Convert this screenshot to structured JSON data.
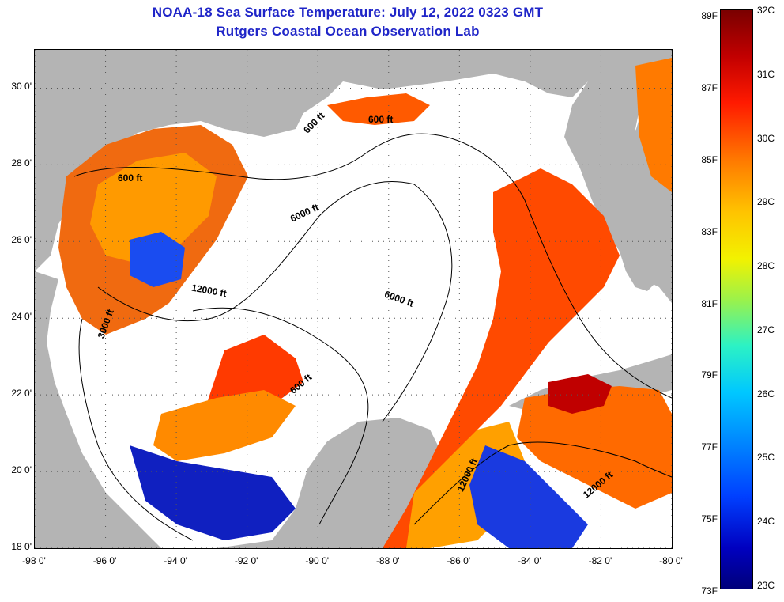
{
  "title": {
    "line1": "NOAA-18 Sea Surface Temperature:  July 12, 2022 0323 GMT",
    "line2": "Rutgers Coastal Ocean Observation Lab"
  },
  "map": {
    "lon_range": [
      -98,
      -80
    ],
    "lat_range": [
      18,
      31
    ],
    "lat_ticks": [
      {
        "value": 30,
        "label": "30 0'"
      },
      {
        "value": 28,
        "label": "28 0'"
      },
      {
        "value": 26,
        "label": "26 0'"
      },
      {
        "value": 24,
        "label": "24 0'"
      },
      {
        "value": 22,
        "label": "22 0'"
      },
      {
        "value": 20,
        "label": "20 0'"
      },
      {
        "value": 18,
        "label": "18 0'"
      }
    ],
    "lon_ticks": [
      {
        "value": -98,
        "label": "-98 0'"
      },
      {
        "value": -96,
        "label": "-96 0'"
      },
      {
        "value": -94,
        "label": "-94 0'"
      },
      {
        "value": -92,
        "label": "-92 0'"
      },
      {
        "value": -90,
        "label": "-90 0'"
      },
      {
        "value": -88,
        "label": "-88 0'"
      },
      {
        "value": -86,
        "label": "-86 0'"
      },
      {
        "value": -84,
        "label": "-84 0'"
      },
      {
        "value": -82,
        "label": "-82 0'"
      },
      {
        "value": -80,
        "label": "-80 0'"
      }
    ],
    "contour_labels": {
      "label_600_west": "600 ft",
      "label_600_north": "600 ft",
      "label_600_nw": "600 ft",
      "label_600_south": "600 ft",
      "label_6000_north": "6000 ft",
      "label_6000_east": "6000 ft",
      "label_12000_west": "12000 ft",
      "label_12000_south": "12000 ft",
      "label_12000_se": "12000 ft",
      "label_3000_tex": "3000 ft"
    },
    "colors": {
      "land": "#b4b4b4",
      "cloud": "#ffffff"
    }
  },
  "colorbar": {
    "fahrenheit": [
      "89F",
      "87F",
      "85F",
      "83F",
      "81F",
      "79F",
      "77F",
      "75F",
      "73F"
    ],
    "celsius": [
      "32C",
      "31C",
      "30C",
      "29C",
      "28C",
      "27C",
      "26C",
      "25C",
      "24C",
      "23C"
    ]
  }
}
